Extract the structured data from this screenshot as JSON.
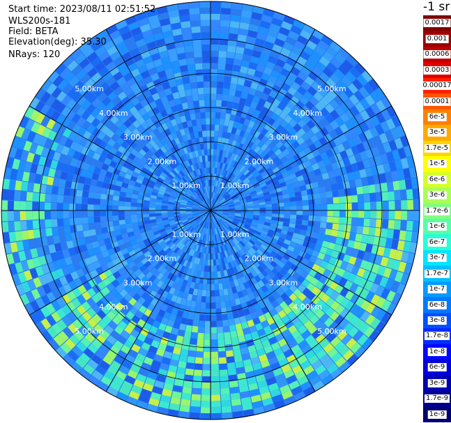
{
  "info": {
    "start_time": "Start time: 2023/08/11 02:51:52",
    "device": "WLS200s-181",
    "field": "Field: BETA",
    "elevation": "Elevation(deg): 35.30",
    "nrays": "NRays: 120"
  },
  "colorbar": {
    "unit_label": "-1 sr",
    "labels": [
      "0.0017",
      "0.001",
      "0.0006",
      "0.0003",
      "0.00017",
      "0.0001",
      "6e-5",
      "3e-5",
      "1.7e-5",
      "1e-5",
      "6e-6",
      "3e-6",
      "1.7e-6",
      "1e-6",
      "6e-7",
      "3e-7",
      "1.7e-7",
      "1e-7",
      "6e-8",
      "3e-8",
      "1.7e-8",
      "1e-8",
      "6e-9",
      "3e-9",
      "1.7e-9",
      "1e-9"
    ],
    "colors": [
      "#7f0000",
      "#9e0000",
      "#c00000",
      "#e00000",
      "#ff2000",
      "#ff5500",
      "#ff8000",
      "#ffaa00",
      "#ffd500",
      "#ffff00",
      "#d5ff2a",
      "#aaff55",
      "#80ff80",
      "#55ffaa",
      "#2affd5",
      "#00e5ff",
      "#00c0ff",
      "#009cff",
      "#0078ff",
      "#0050ff",
      "#002cff",
      "#0008ff",
      "#0000dd",
      "#0000b0",
      "#000090",
      "#000070"
    ]
  },
  "chart_data": {
    "type": "ppi",
    "title": "",
    "field": "BETA",
    "n_rays": 120,
    "range_rings_km": [
      1,
      2,
      3,
      4,
      5
    ],
    "range_labels": [
      "1.00km",
      "2.00km",
      "3.00km",
      "4.00km",
      "5.00km"
    ],
    "max_range_km": 5.0,
    "spoke_angles_deg": [
      0,
      30,
      60,
      90,
      120,
      150,
      180,
      210,
      240,
      270,
      300,
      330
    ],
    "grid": true
  }
}
